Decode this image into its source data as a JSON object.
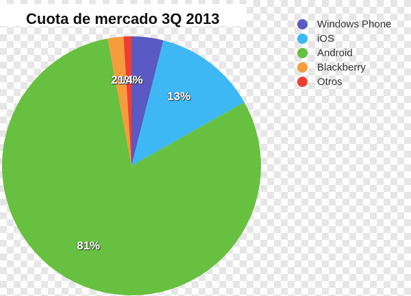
{
  "chart_data": {
    "type": "pie",
    "title": "Cuota de mercado 3Q 2013",
    "categories": [
      "Windows Phone",
      "iOS",
      "Android",
      "Blackberry",
      "Otros"
    ],
    "values": [
      4,
      13,
      81,
      2,
      1
    ],
    "value_labels": [
      "4%",
      "13%",
      "81%",
      "2%",
      "1%"
    ],
    "colors": [
      "#5b59c3",
      "#3db8f5",
      "#67c03f",
      "#f79c3d",
      "#ef3d33"
    ],
    "legend_position": "right",
    "start_angle": "12 o'clock, clockwise"
  },
  "title": "Cuota de mercado 3Q 2013",
  "legend": [
    {
      "label": "Windows Phone",
      "color": "#5b59c3"
    },
    {
      "label": "iOS",
      "color": "#3db8f5"
    },
    {
      "label": "Android",
      "color": "#67c03f"
    },
    {
      "label": "Blackberry",
      "color": "#f79c3d"
    },
    {
      "label": "Otros",
      "color": "#ef3d33"
    }
  ],
  "labels": {
    "windows_phone": "4%",
    "ios": "13%",
    "android": "81%",
    "blackberry": "2%",
    "otros": "1%"
  }
}
